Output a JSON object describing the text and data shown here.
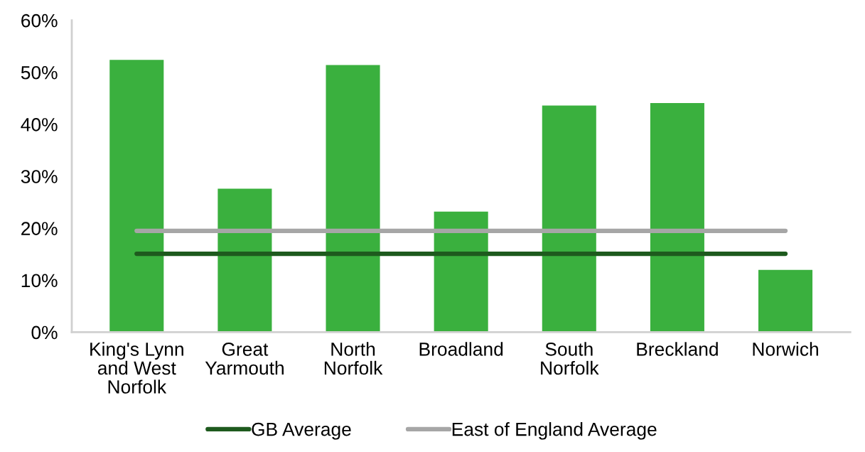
{
  "chart_data": {
    "type": "bar",
    "categories": [
      "King's Lynn and West Norfolk",
      "Great Yarmouth",
      "North Norfolk",
      "Broadland",
      "South Norfolk",
      "Breckland",
      "Norwich"
    ],
    "series": [
      {
        "color": "#3ab03e",
        "values": [
          52.4,
          27.6,
          51.4,
          23.2,
          43.6,
          44.1,
          12.0
        ]
      },
      {
        "type": "line",
        "name": "GB Average",
        "color": "#1e5a1e",
        "values": [
          15.1,
          15.1,
          15.1,
          15.1,
          15.1,
          15.1,
          15.1
        ]
      },
      {
        "type": "line",
        "name": "East of England Average",
        "color": "#a6a6a6",
        "values": [
          19.5,
          19.5,
          19.5,
          19.5,
          19.5,
          19.5,
          19.5
        ]
      }
    ],
    "ylim": [
      0,
      60
    ],
    "yticks": [
      {
        "value": 0,
        "label": "0%"
      },
      {
        "value": 10,
        "label": "10%"
      },
      {
        "value": 20,
        "label": "20%"
      },
      {
        "value": 30,
        "label": "30%"
      },
      {
        "value": 40,
        "label": "40%"
      },
      {
        "value": 50,
        "label": "50%"
      },
      {
        "value": 60,
        "label": "60%"
      }
    ],
    "grid": false,
    "legend": "bottom",
    "marker": "none",
    "line_style": "solid"
  }
}
